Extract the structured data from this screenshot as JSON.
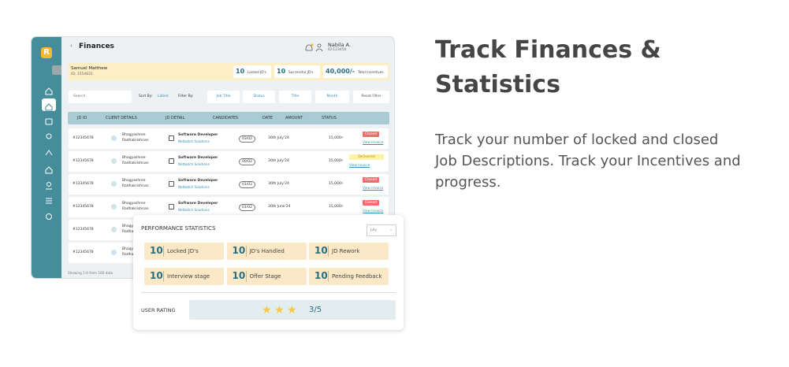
{
  "heading": "Track Finances & Statistics",
  "description": "Track your number of locked and closed Job Descriptions. Track your Incentives and progress.",
  "app": {
    "logo": "R",
    "title": "Finances",
    "user": {
      "name": "Nabila A.",
      "id": "ID:123450"
    }
  },
  "banner": {
    "name": "Samuel Matthew",
    "id": "ID: 1554631",
    "stats": [
      {
        "value": 10,
        "label": "Locked JD's"
      },
      {
        "value": 10,
        "label": "Successful JD's"
      },
      {
        "value": "40,000/-",
        "label": "Total Incentives"
      }
    ]
  },
  "filters": {
    "search": "Search",
    "sort_label": "Sort By:",
    "sort_value": "Latest",
    "filter_label": "Filter By:",
    "dropdowns": [
      "Job Title",
      "Status",
      "Title",
      "Month"
    ],
    "reset": "Reset Filter"
  },
  "table": {
    "columns": [
      "JD ID",
      "CLIENT DETAILS",
      "JD DETAIL",
      "CANDIDATES",
      "DATE",
      "AMOUNT",
      "STATUS"
    ],
    "rows": [
      {
        "id": "#12345678",
        "client": "Bhagyashree Radhakrishnan",
        "job_title": "Software Developer",
        "company": "Netbatch Solutions",
        "candidates": "03/02",
        "date": "30th July'24",
        "amount": "15,000/-",
        "status": "Closed",
        "link": "View Invoice"
      },
      {
        "id": "#12345678",
        "client": "Bhagyashree Radhakrishnan",
        "job_title": "Software Developer",
        "company": "Netbatch Solutions",
        "candidates": "00/02",
        "date": "30th July'24",
        "amount": "15,000/-",
        "status": "Delivered",
        "link": "View Invoice"
      },
      {
        "id": "#12345678",
        "client": "Bhagyashree Radhakrishnan",
        "job_title": "Software Developer",
        "company": "Netbatch Solutions",
        "candidates": "01/02",
        "date": "30th July'24",
        "amount": "15,000/-",
        "status": "Closed",
        "link": "View Invoice"
      },
      {
        "id": "#12345678",
        "client": "Bhagyashree Radhakrishnan",
        "job_title": "Software Developer",
        "company": "Netbatch Solutions",
        "candidates": "01/02",
        "date": "30th June'24",
        "amount": "15,000/-",
        "status": "Closed",
        "link": "View Invoice"
      },
      {
        "id": "#12345678",
        "client": "Bhagyashree Radhakrishnan"
      },
      {
        "id": "#12345678",
        "client": "Bhagyashree Radhakrishnan"
      }
    ],
    "footer": "Showing 1-6 from 100 data"
  },
  "performance": {
    "title": "PERFORMANCE STATISTICS",
    "period": "July",
    "tiles": [
      {
        "value": 10,
        "label": "Locked JD's"
      },
      {
        "value": 10,
        "label": "JD's Handled"
      },
      {
        "value": 10,
        "label": "JD Rework"
      },
      {
        "value": 10,
        "label": "Interview stage"
      },
      {
        "value": 10,
        "label": "Offer Stage"
      },
      {
        "value": 10,
        "label": "Pending Feedback"
      }
    ],
    "rating_label": "USER RATING",
    "stars": 3,
    "rating": "3/5"
  }
}
